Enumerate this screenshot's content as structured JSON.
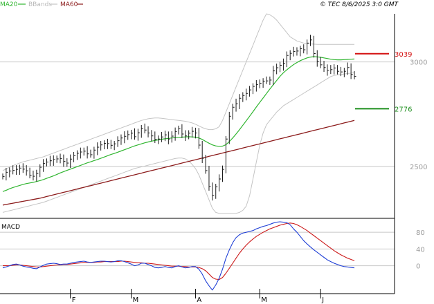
{
  "legend": {
    "ma20_label": "MA20",
    "bbands_label": "BBands",
    "ma60_label": "MA60"
  },
  "timestamp": "© TEC 8/6/2025 3:0 GMT",
  "colors": {
    "ma20": "#2fb52f",
    "ma60": "#8b1a1a",
    "bbands": "#c4c4c4",
    "bars": "#1a1a1a",
    "resistance": "#d41010",
    "support": "#1e8f1e",
    "macd": "#1f3fd6",
    "signal": "#cc1a1a",
    "grid": "#c8c8c8",
    "axis": "#000000",
    "ticktext": "#9a9a9a"
  },
  "macd_panel": {
    "label": "MACD"
  },
  "chart_data": [
    {
      "type": "line",
      "title": "",
      "x_ticks": [
        "F",
        "M",
        "A",
        "M",
        "J"
      ],
      "y_ticks": [
        "3000",
        "2500"
      ],
      "ylim": [
        2255,
        3230
      ],
      "price_bars": [
        2452,
        2472,
        2478,
        2481,
        2486,
        2492,
        2487,
        2479,
        2458,
        2453,
        2466,
        2496,
        2514,
        2521,
        2527,
        2533,
        2536,
        2538,
        2524,
        2516,
        2535,
        2551,
        2563,
        2569,
        2573,
        2560,
        2556,
        2578,
        2592,
        2603,
        2610,
        2609,
        2601,
        2608,
        2623,
        2636,
        2644,
        2652,
        2659,
        2642,
        2661,
        2683,
        2674,
        2660,
        2646,
        2630,
        2631,
        2641,
        2651,
        2631,
        2645,
        2667,
        2680,
        2655,
        2646,
        2659,
        2668,
        2660,
        2602,
        2539,
        2480,
        2404,
        2362,
        2402,
        2440,
        2486,
        2631,
        2740,
        2783,
        2800,
        2826,
        2839,
        2849,
        2866,
        2883,
        2891,
        2898,
        2908,
        2909,
        2913,
        2957,
        2972,
        2984,
        2993,
        3031,
        3041,
        3050,
        3052,
        3063,
        3058,
        3090,
        3105,
        3040,
        3001,
        2986,
        2973,
        2960,
        2963,
        2971,
        2955,
        2952,
        2955,
        2973,
        2940,
        2931
      ],
      "series": [
        {
          "name": "MA20",
          "values": [
            2380,
            2386,
            2393,
            2399,
            2404,
            2409,
            2414,
            2418,
            2421,
            2424,
            2428,
            2432,
            2437,
            2443,
            2449,
            2455,
            2462,
            2469,
            2475,
            2481,
            2487,
            2493,
            2499,
            2505,
            2511,
            2517,
            2522,
            2528,
            2533,
            2539,
            2545,
            2551,
            2557,
            2562,
            2568,
            2574,
            2580,
            2586,
            2592,
            2598,
            2603,
            2608,
            2613,
            2617,
            2621,
            2624,
            2627,
            2630,
            2632,
            2634,
            2636,
            2638,
            2639,
            2640,
            2641,
            2642,
            2641,
            2640,
            2636,
            2629,
            2620,
            2611,
            2603,
            2598,
            2596,
            2597,
            2604,
            2619,
            2636,
            2655,
            2675,
            2697,
            2718,
            2740,
            2762,
            2784,
            2806,
            2827,
            2849,
            2870,
            2891,
            2911,
            2931,
            2948,
            2962,
            2975,
            2987,
            2997,
            3006,
            3013,
            3019,
            3023,
            3025,
            3024,
            3022,
            3019,
            3016,
            3013,
            3011,
            3010,
            3010,
            3011,
            3012,
            3013,
            3014
          ]
        },
        {
          "name": "MA60",
          "values": [
            2315,
            2318,
            2321,
            2324,
            2327,
            2330,
            2333,
            2336,
            2339,
            2342,
            2345,
            2348,
            2352,
            2356,
            2360,
            2364,
            2368,
            2372,
            2376,
            2380,
            2384,
            2388,
            2392,
            2396,
            2400,
            2404,
            2408,
            2412,
            2416,
            2420,
            2424,
            2428,
            2432,
            2436,
            2440,
            2444,
            2448,
            2452,
            2456,
            2460,
            2464,
            2468,
            2472,
            2476,
            2480,
            2484,
            2488,
            2492,
            2496,
            2500,
            2504,
            2508,
            2512,
            2516,
            2520,
            2524,
            2528,
            2532,
            2536,
            2540,
            2544,
            2548,
            2552,
            2556,
            2560,
            2564,
            2568,
            2572,
            2576,
            2580,
            2584,
            2588,
            2592,
            2596,
            2600,
            2604,
            2608,
            2612,
            2616,
            2620,
            2624,
            2628,
            2632,
            2636,
            2640,
            2644,
            2648,
            2652,
            2656,
            2660,
            2664,
            2668,
            2672,
            2676,
            2680,
            2684,
            2688,
            2692,
            2696,
            2700,
            2704,
            2708,
            2712,
            2716,
            2720
          ]
        },
        {
          "name": "BBands",
          "values": [
            2480,
            2488,
            2496,
            2504,
            2510,
            2516,
            2522,
            2526,
            2530,
            2534,
            2538,
            2542,
            2546,
            2552,
            2558,
            2564,
            2570,
            2576,
            2582,
            2588,
            2594,
            2600,
            2606,
            2612,
            2618,
            2624,
            2630,
            2636,
            2642,
            2648,
            2654,
            2660,
            2666,
            2672,
            2678,
            2684,
            2690,
            2696,
            2702,
            2708,
            2714,
            2720,
            2724,
            2728,
            2730,
            2732,
            2732,
            2730,
            2728,
            2726,
            2724,
            2722,
            2720,
            2718,
            2716,
            2712,
            2708,
            2702,
            2694,
            2686,
            2680,
            2676,
            2676,
            2680,
            2690,
            2720,
            2760,
            2800,
            2840,
            2880,
            2920,
            2960,
            3000,
            3040,
            3080,
            3120,
            3160,
            3200,
            3230,
            3225,
            3215,
            3200,
            3180,
            3160,
            3140,
            3120,
            3110,
            3100,
            3095,
            3090,
            3088,
            3086,
            3085,
            3084,
            3084,
            3084,
            3084,
            3084,
            3084,
            3084,
            3084,
            3084,
            3084,
            3084,
            3084
          ]
        },
        {
          "name": "BBands",
          "values": [
            2280,
            2284,
            2288,
            2292,
            2296,
            2300,
            2304,
            2308,
            2312,
            2316,
            2320,
            2324,
            2328,
            2334,
            2340,
            2346,
            2352,
            2358,
            2364,
            2370,
            2376,
            2382,
            2388,
            2394,
            2400,
            2406,
            2412,
            2418,
            2424,
            2430,
            2436,
            2442,
            2448,
            2454,
            2460,
            2466,
            2472,
            2478,
            2484,
            2490,
            2494,
            2498,
            2502,
            2506,
            2510,
            2514,
            2518,
            2522,
            2526,
            2530,
            2534,
            2538,
            2540,
            2540,
            2536,
            2526,
            2510,
            2490,
            2460,
            2420,
            2380,
            2340,
            2300,
            2280,
            2275,
            2275,
            2275,
            2275,
            2275,
            2275,
            2280,
            2290,
            2310,
            2360,
            2440,
            2520,
            2600,
            2660,
            2700,
            2720,
            2740,
            2760,
            2775,
            2790,
            2800,
            2810,
            2820,
            2830,
            2840,
            2850,
            2860,
            2870,
            2880,
            2890,
            2900,
            2910,
            2920,
            2930,
            2935,
            2938,
            2940,
            2942,
            2944,
            2946,
            2948
          ]
        }
      ],
      "levels": [
        {
          "name": "resistance",
          "value": 3039,
          "label": "3039"
        },
        {
          "name": "support",
          "value": 2776,
          "label": "2776"
        }
      ]
    },
    {
      "type": "line",
      "title": "MACD",
      "y_ticks": [
        "80",
        "40",
        "0"
      ],
      "ylim": [
        -65,
        110
      ],
      "series": [
        {
          "name": "MACD",
          "values": [
            -5,
            -3,
            0,
            3,
            4,
            2,
            -1,
            -3,
            -4,
            -6,
            -7,
            -3,
            1,
            4,
            5,
            6,
            5,
            3,
            4,
            4,
            6,
            8,
            9,
            10,
            11,
            9,
            8,
            9,
            10,
            11,
            11,
            10,
            9,
            10,
            12,
            12,
            10,
            7,
            4,
            0,
            2,
            6,
            6,
            3,
            0,
            -4,
            -5,
            -4,
            -2,
            -4,
            -5,
            -2,
            0,
            -3,
            -5,
            -4,
            -2,
            -2,
            -8,
            -20,
            -36,
            -48,
            -58,
            -46,
            -30,
            -8,
            18,
            38,
            55,
            67,
            74,
            78,
            80,
            82,
            84,
            88,
            91,
            94,
            96,
            99,
            102,
            104,
            105,
            104,
            103,
            98,
            88,
            80,
            70,
            60,
            52,
            45,
            38,
            32,
            26,
            20,
            14,
            10,
            6,
            3,
            0,
            -2,
            -3,
            -4,
            -5
          ]
        },
        {
          "name": "Signal",
          "values": [
            0,
            0,
            0,
            1,
            2,
            2,
            1,
            0,
            -1,
            -2,
            -3,
            -3,
            -2,
            -1,
            0,
            1,
            2,
            2,
            3,
            3,
            4,
            5,
            6,
            7,
            8,
            8,
            8,
            8,
            9,
            9,
            10,
            10,
            10,
            10,
            10,
            11,
            11,
            10,
            9,
            8,
            7,
            7,
            6,
            6,
            5,
            4,
            3,
            2,
            1,
            0,
            -1,
            -1,
            -1,
            -2,
            -2,
            -3,
            -3,
            -3,
            -4,
            -7,
            -12,
            -20,
            -28,
            -32,
            -33,
            -28,
            -18,
            -6,
            6,
            18,
            30,
            40,
            49,
            57,
            64,
            70,
            75,
            80,
            84,
            88,
            91,
            94,
            97,
            99,
            101,
            102,
            101,
            98,
            94,
            89,
            84,
            78,
            72,
            66,
            60,
            54,
            48,
            42,
            36,
            31,
            26,
            22,
            18,
            15,
            12
          ]
        }
      ]
    }
  ]
}
